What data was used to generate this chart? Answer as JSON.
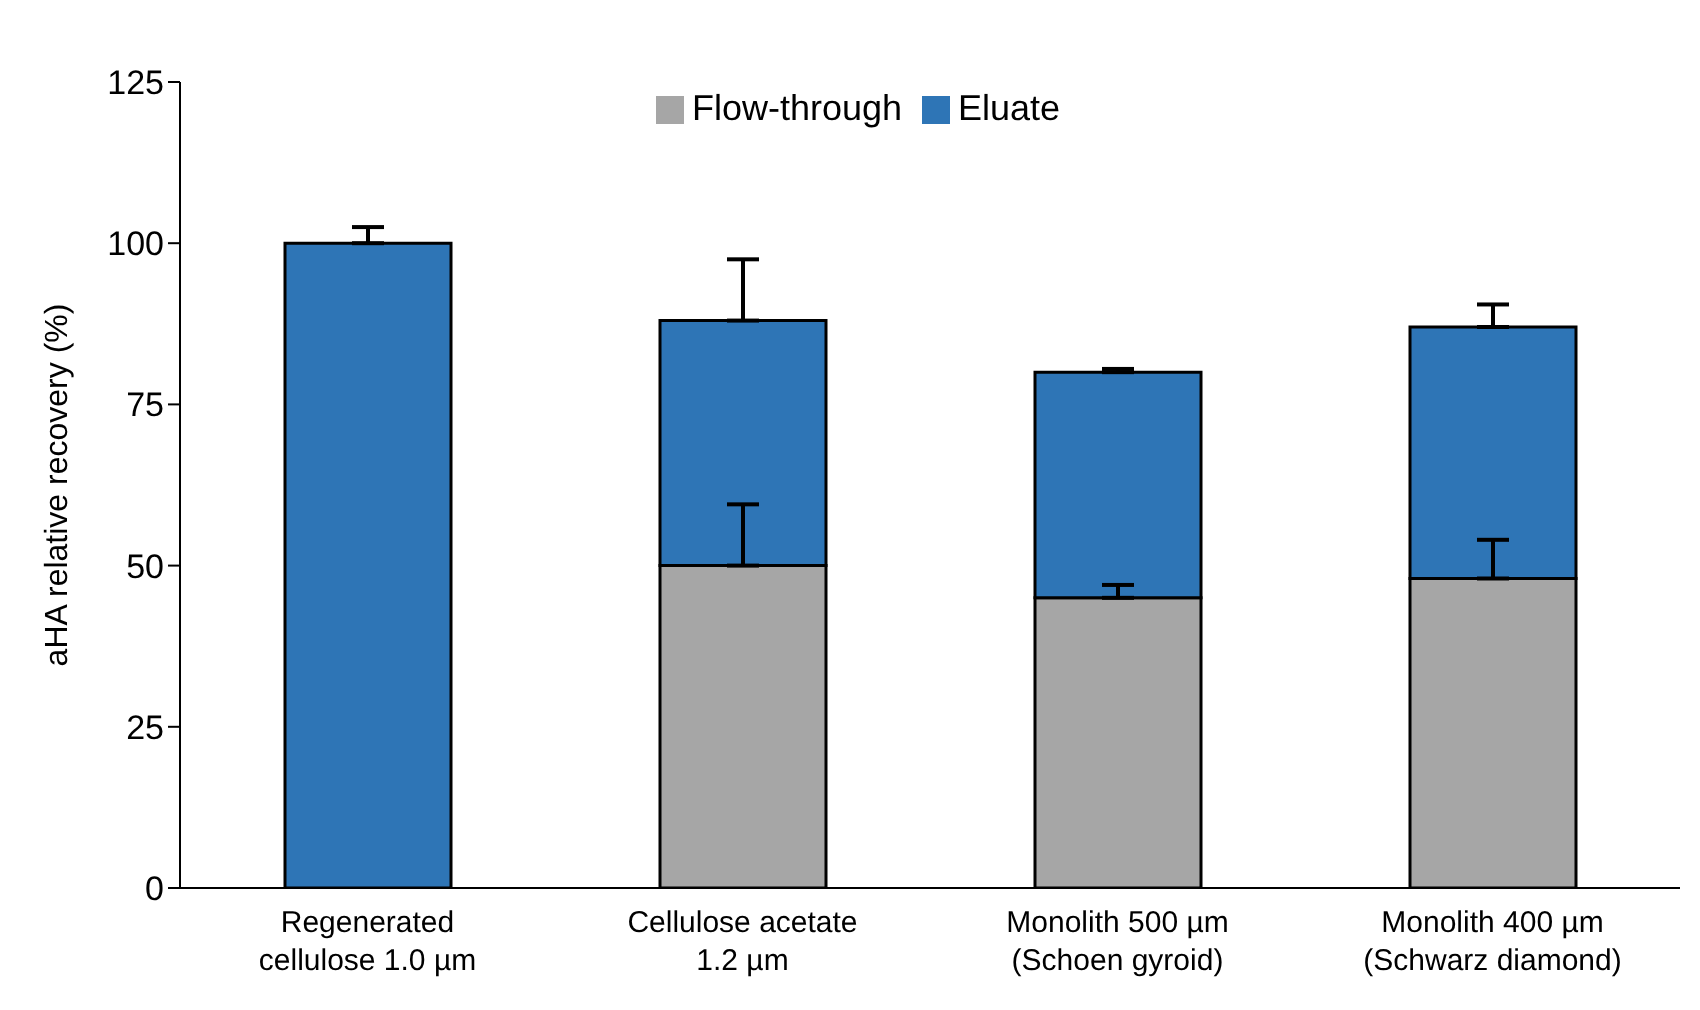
{
  "chart_data": {
    "type": "bar",
    "stacked": true,
    "ylabel": "aHA relative recovery (%)",
    "categories": [
      "Regenerated\ncellulose 1.0 µm",
      "Cellulose acetate\n1.2 µm",
      "Monolith 500 µm\n(Schoen gyroid)",
      "Monolith 400 µm\n(Schwarz diamond)"
    ],
    "series": [
      {
        "name": "Flow-through",
        "color": "#a6a6a6",
        "values": [
          0,
          50,
          45,
          48
        ],
        "errors": [
          null,
          [
            50,
            59.5
          ],
          [
            45,
            47
          ],
          [
            48,
            54
          ]
        ]
      },
      {
        "name": "Eluate",
        "color": "#2e75b6",
        "values": [
          100,
          38,
          35,
          39
        ],
        "errors": [
          [
            100,
            102.5
          ],
          [
            88,
            97.5
          ],
          [
            80,
            80.5
          ],
          [
            87,
            90.5
          ]
        ]
      }
    ],
    "ylim": [
      0,
      125
    ],
    "yticks": [
      0,
      25,
      50,
      75,
      100,
      125
    ],
    "grid": false,
    "legend": "top"
  }
}
